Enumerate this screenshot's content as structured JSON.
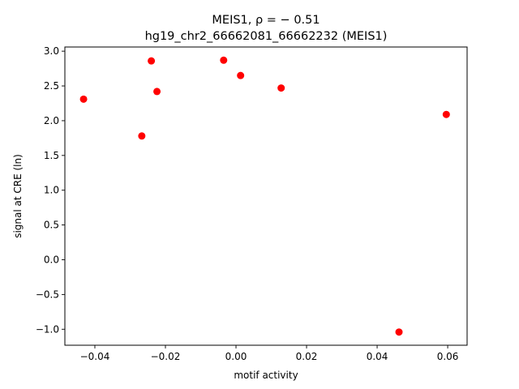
{
  "chart_data": {
    "type": "scatter",
    "title_line1": "MEIS1, ρ = − 0.51",
    "title_line2": "hg19_chr2_66662081_66662232 (MEIS1)",
    "xlabel": "motif activity",
    "ylabel": "signal at CRE (ln)",
    "xlim": [
      -0.0485,
      0.0655
    ],
    "ylim": [
      -1.23,
      3.06
    ],
    "xticks": [
      -0.04,
      -0.02,
      0.0,
      0.02,
      0.04,
      0.06
    ],
    "xtick_labels": [
      "−0.04",
      "−0.02",
      "0.00",
      "0.02",
      "0.04",
      "0.06"
    ],
    "yticks": [
      -1.0,
      -0.5,
      0.0,
      0.5,
      1.0,
      1.5,
      2.0,
      2.5,
      3.0
    ],
    "ytick_labels": [
      "−1.0",
      "−0.5",
      "0.0",
      "0.5",
      "1.0",
      "1.5",
      "2.0",
      "2.5",
      "3.0"
    ],
    "grid": false,
    "marker_color": "#ff0000",
    "points": [
      {
        "x": -0.0432,
        "y": 2.31
      },
      {
        "x": -0.0267,
        "y": 1.78
      },
      {
        "x": -0.024,
        "y": 2.86
      },
      {
        "x": -0.0224,
        "y": 2.42
      },
      {
        "x": -0.0035,
        "y": 2.87
      },
      {
        "x": 0.0013,
        "y": 2.65
      },
      {
        "x": 0.0128,
        "y": 2.47
      },
      {
        "x": 0.0462,
        "y": -1.04
      },
      {
        "x": 0.0596,
        "y": 2.09
      }
    ]
  }
}
